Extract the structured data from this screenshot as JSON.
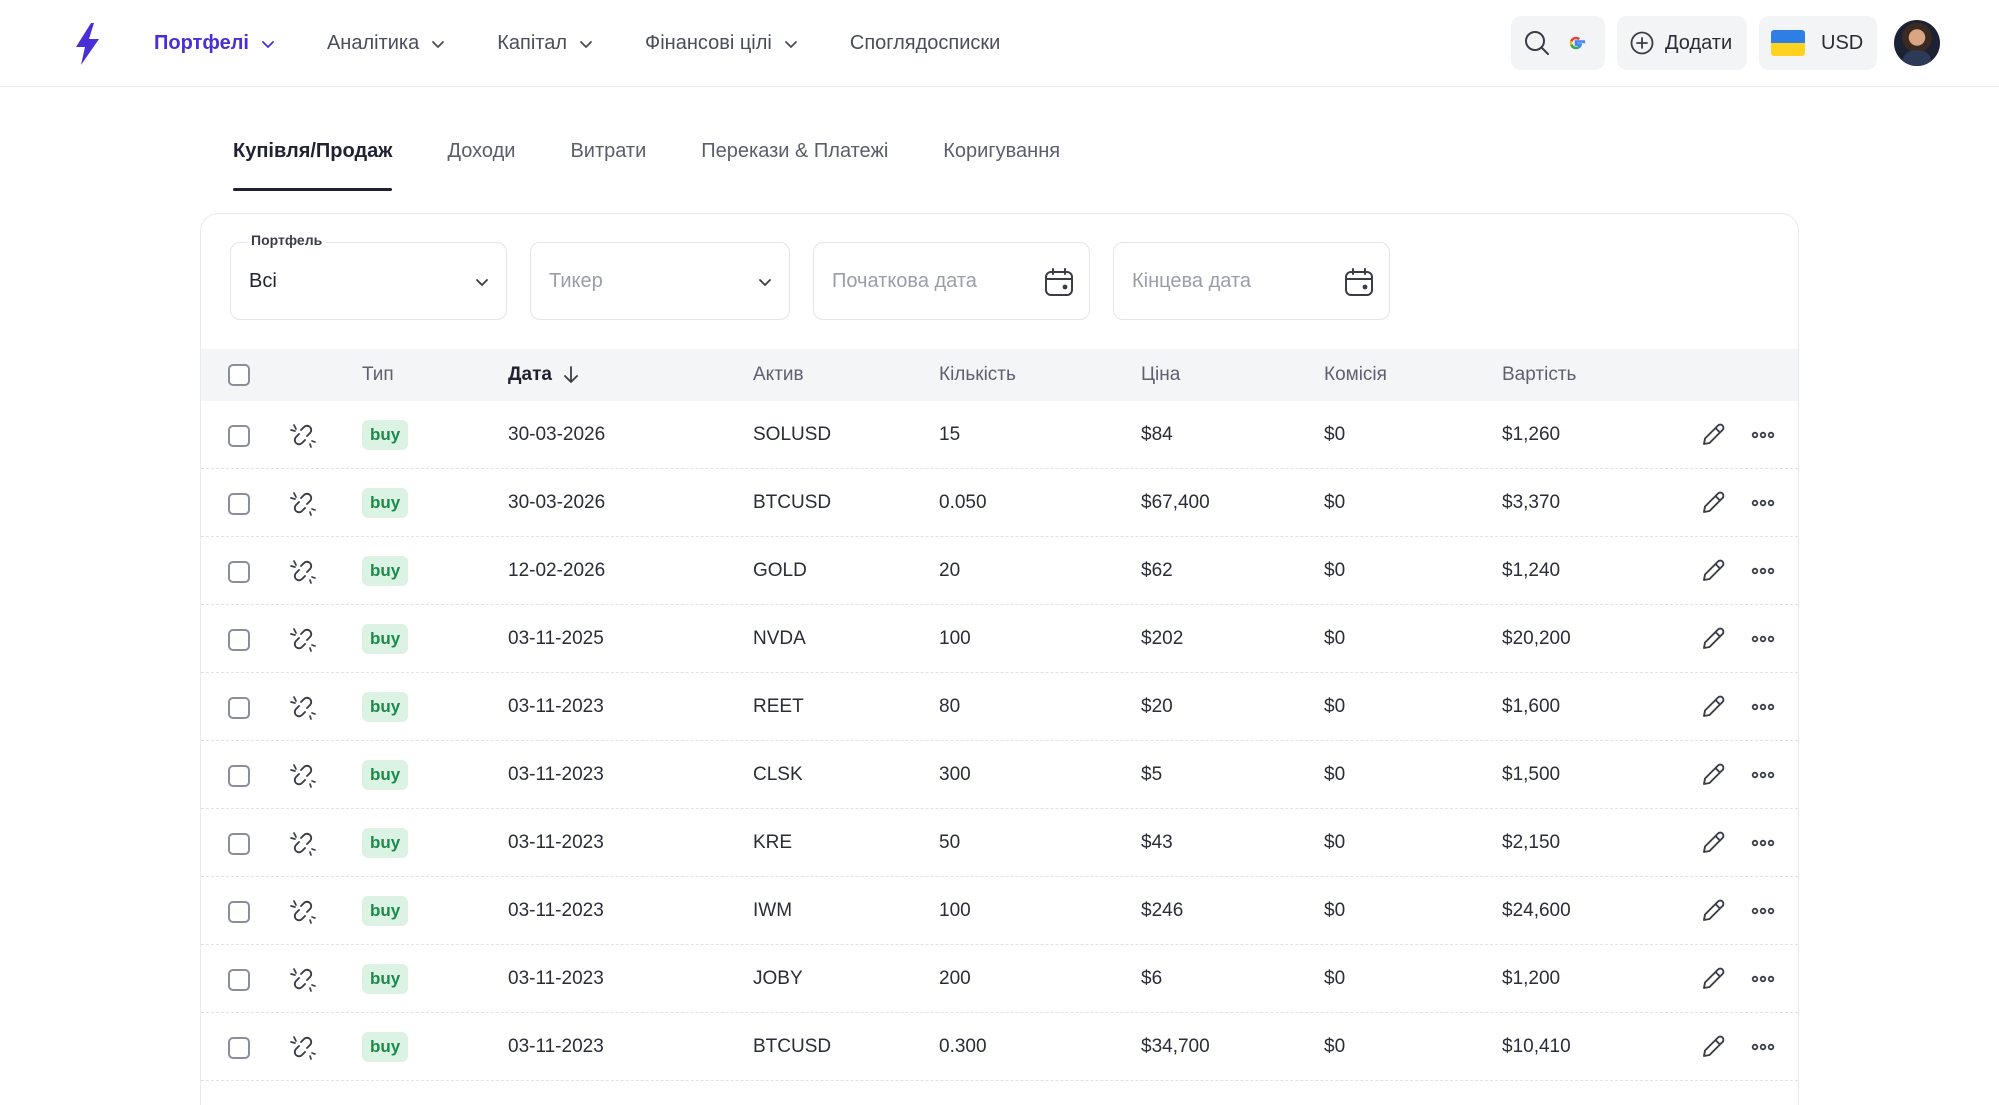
{
  "nav": {
    "items": [
      {
        "label": "Портфелі",
        "active": true,
        "dropdown": true
      },
      {
        "label": "Аналітика",
        "active": false,
        "dropdown": true
      },
      {
        "label": "Капітал",
        "active": false,
        "dropdown": true
      },
      {
        "label": "Фінансові цілі",
        "active": false,
        "dropdown": true
      },
      {
        "label": "Споглядосписки",
        "active": false,
        "dropdown": false
      }
    ]
  },
  "toolbar": {
    "add_label": "Додати",
    "currency": "USD",
    "flag": "ukraine-flag"
  },
  "tabs": [
    {
      "label": "Купівля/Продаж",
      "active": true
    },
    {
      "label": "Доходи",
      "active": false
    },
    {
      "label": "Витрати",
      "active": false
    },
    {
      "label": "Перекази & Платежі",
      "active": false
    },
    {
      "label": "Коригування",
      "active": false
    }
  ],
  "filters": {
    "portfolio": {
      "label": "Портфель",
      "value": "Всі"
    },
    "ticker": {
      "placeholder": "Тикер"
    },
    "start_date": {
      "placeholder": "Початкова дата"
    },
    "end_date": {
      "placeholder": "Кінцева дата"
    }
  },
  "table": {
    "columns": {
      "type": "Тип",
      "date": "Дата",
      "asset": "Актив",
      "quantity": "Кількість",
      "price": "Ціна",
      "fee": "Комісія",
      "value": "Вартість"
    },
    "rows": [
      {
        "type": "buy",
        "date": "30-03-2026",
        "asset": "SOLUSD",
        "quantity": "15",
        "price": "$84",
        "fee": "$0",
        "value": "$1,260"
      },
      {
        "type": "buy",
        "date": "30-03-2026",
        "asset": "BTCUSD",
        "quantity": "0.050",
        "price": "$67,400",
        "fee": "$0",
        "value": "$3,370"
      },
      {
        "type": "buy",
        "date": "12-02-2026",
        "asset": "GOLD",
        "quantity": "20",
        "price": "$62",
        "fee": "$0",
        "value": "$1,240"
      },
      {
        "type": "buy",
        "date": "03-11-2025",
        "asset": "NVDA",
        "quantity": "100",
        "price": "$202",
        "fee": "$0",
        "value": "$20,200"
      },
      {
        "type": "buy",
        "date": "03-11-2023",
        "asset": "REET",
        "quantity": "80",
        "price": "$20",
        "fee": "$0",
        "value": "$1,600"
      },
      {
        "type": "buy",
        "date": "03-11-2023",
        "asset": "CLSK",
        "quantity": "300",
        "price": "$5",
        "fee": "$0",
        "value": "$1,500"
      },
      {
        "type": "buy",
        "date": "03-11-2023",
        "asset": "KRE",
        "quantity": "50",
        "price": "$43",
        "fee": "$0",
        "value": "$2,150"
      },
      {
        "type": "buy",
        "date": "03-11-2023",
        "asset": "IWM",
        "quantity": "100",
        "price": "$246",
        "fee": "$0",
        "value": "$24,600"
      },
      {
        "type": "buy",
        "date": "03-11-2023",
        "asset": "JOBY",
        "quantity": "200",
        "price": "$6",
        "fee": "$0",
        "value": "$1,200"
      },
      {
        "type": "buy",
        "date": "03-11-2023",
        "asset": "BTCUSD",
        "quantity": "0.300",
        "price": "$34,700",
        "fee": "$0",
        "value": "$10,410"
      }
    ]
  },
  "colors": {
    "accent": "#4b2fd6",
    "buy_badge_bg": "#dcf3e4",
    "buy_badge_text": "#1c8a4b"
  }
}
